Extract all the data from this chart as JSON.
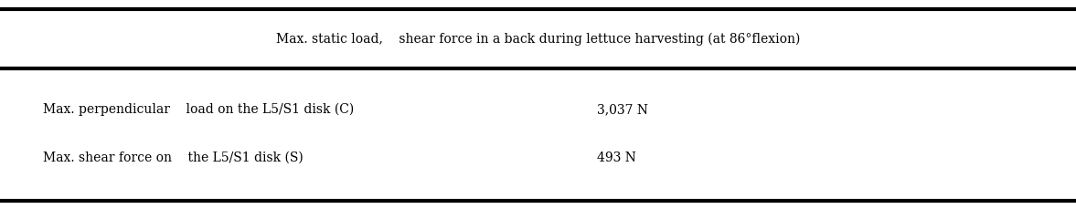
{
  "title": "Max. static load,    shear force in a back during lettuce harvesting (at 86°flexion)",
  "row1_label": "Max. perpendicular    load on the L5/S1 disk (C)",
  "row1_value": "3,037 N",
  "row2_label": "Max. shear force on    the L5/S1 disk (S)",
  "row2_value": "493 N",
  "bg_color": "#ffffff",
  "text_color": "#000000",
  "line_color": "#000000",
  "font_size": 10.0,
  "title_font_size": 10.0,
  "fig_width": 11.77,
  "fig_height": 2.29,
  "dpi": 100
}
